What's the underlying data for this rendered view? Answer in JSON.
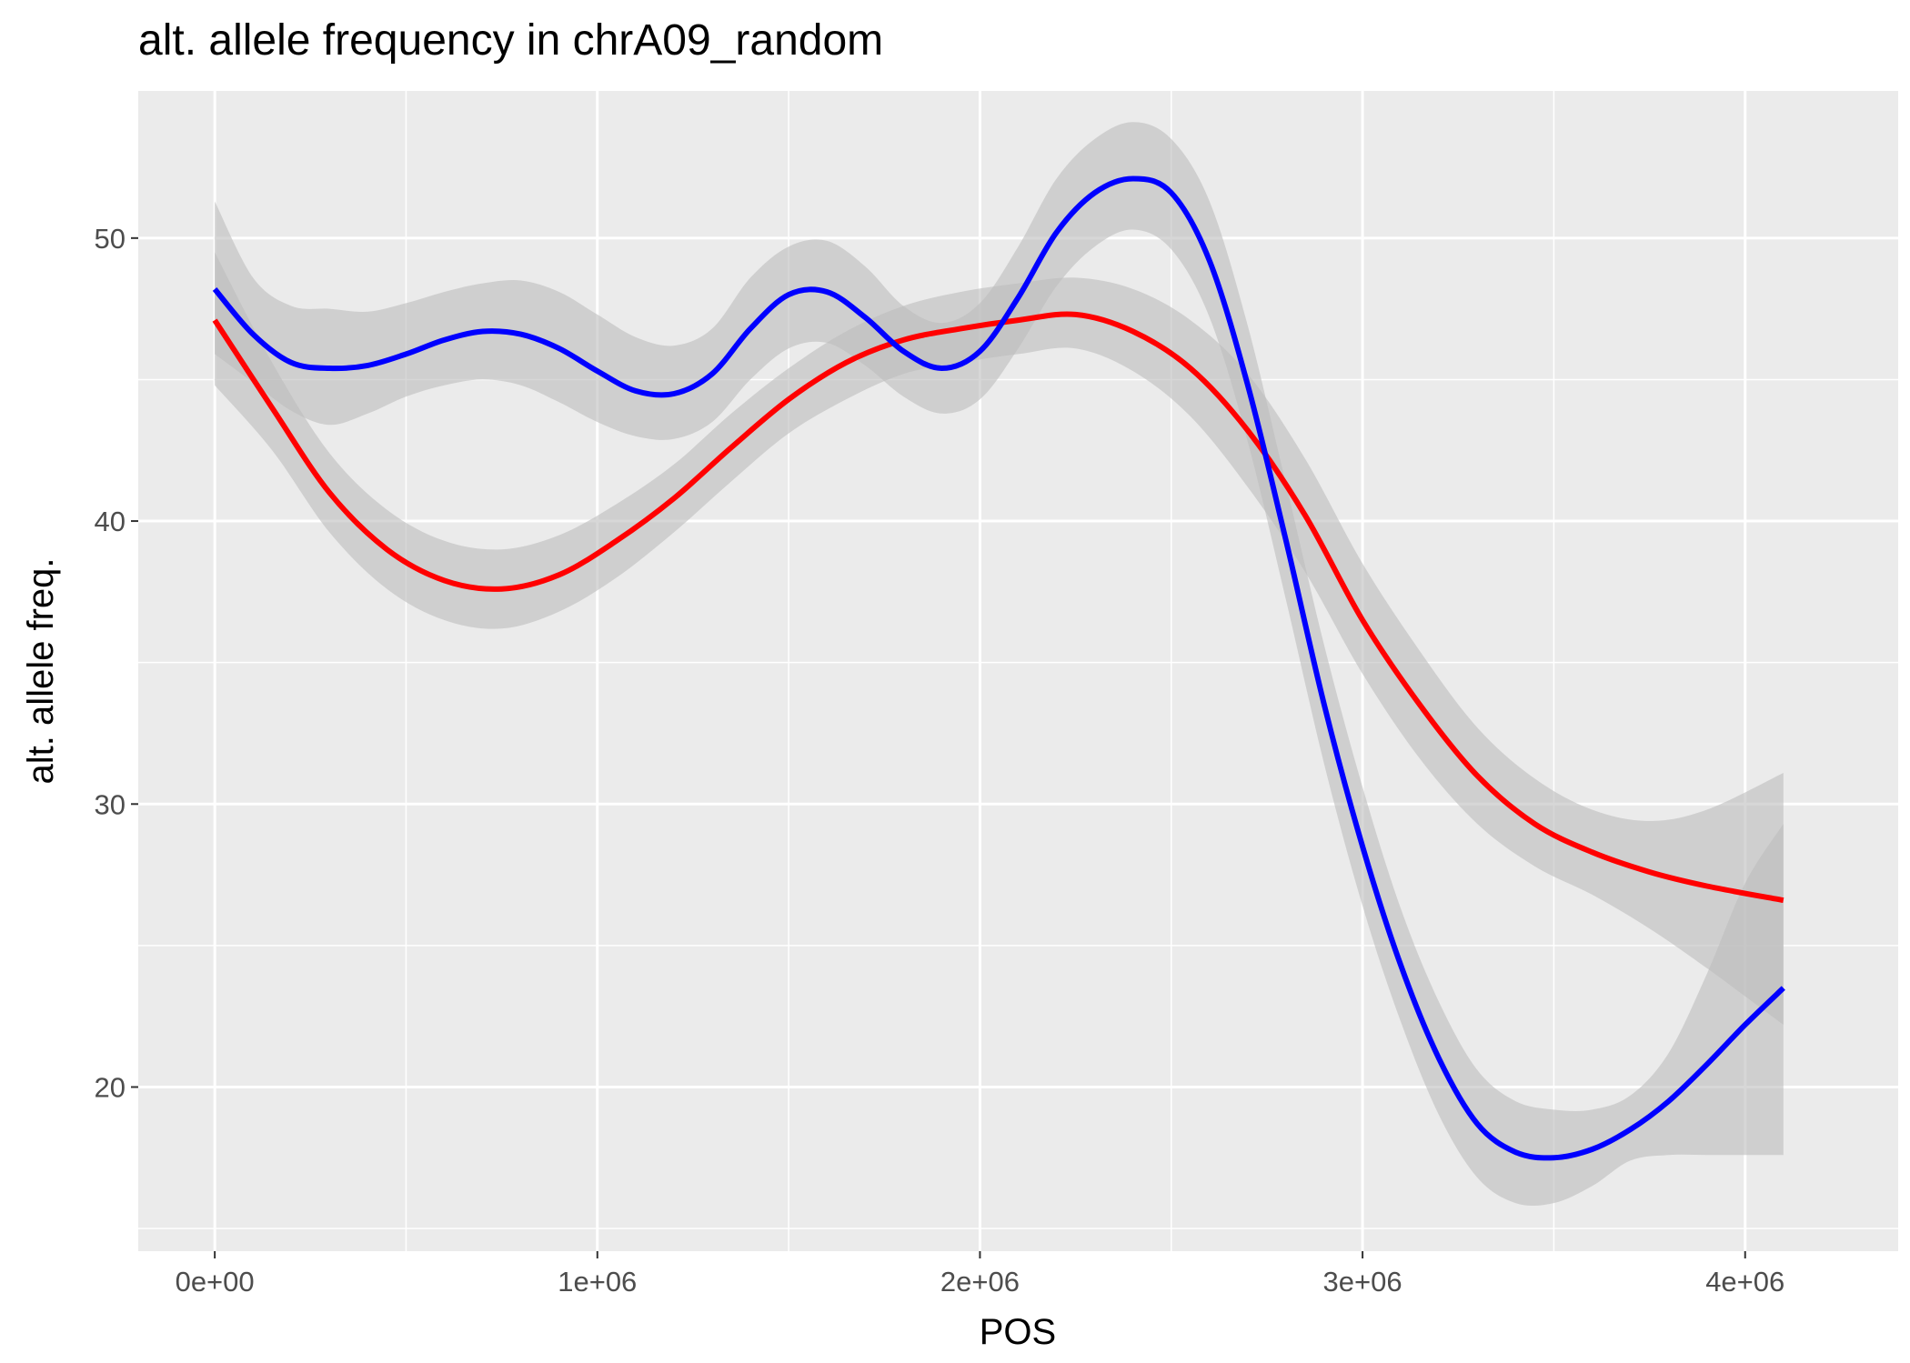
{
  "chart_data": {
    "type": "line",
    "title": "alt. allele frequency in chrA09_random",
    "xlabel": "POS",
    "ylabel": "alt. allele freq.",
    "xlim": [
      -200000,
      4400000
    ],
    "ylim": [
      14.2,
      55.2
    ],
    "x_ticks": [
      {
        "value": 0,
        "label": "0e+00"
      },
      {
        "value": 1000000,
        "label": "1e+06"
      },
      {
        "value": 2000000,
        "label": "2e+06"
      },
      {
        "value": 3000000,
        "label": "3e+06"
      },
      {
        "value": 4000000,
        "label": "4e+06"
      }
    ],
    "x_minor": [
      500000,
      1500000,
      2500000,
      3500000
    ],
    "y_ticks": [
      {
        "value": 20,
        "label": "20"
      },
      {
        "value": 30,
        "label": "30"
      },
      {
        "value": 40,
        "label": "40"
      },
      {
        "value": 50,
        "label": "50"
      }
    ],
    "y_minor": [
      15,
      25,
      35,
      45
    ],
    "grid": true,
    "legend": "none",
    "colors": {
      "panel": "#ebebeb",
      "grid": "#ffffff",
      "ribbon": "#bdbdbd"
    },
    "series": [
      {
        "color": "#ff0000",
        "x": [
          0,
          150000,
          300000,
          450000,
          600000,
          750000,
          900000,
          1050000,
          1200000,
          1350000,
          1500000,
          1650000,
          1800000,
          1950000,
          2100000,
          2250000,
          2400000,
          2550000,
          2700000,
          2850000,
          3000000,
          3150000,
          3300000,
          3450000,
          3600000,
          3750000,
          3900000,
          4100000
        ],
        "y": [
          47.1,
          44.0,
          41.0,
          39.0,
          37.9,
          37.6,
          38.1,
          39.3,
          40.8,
          42.6,
          44.3,
          45.6,
          46.4,
          46.8,
          47.1,
          47.3,
          46.7,
          45.4,
          43.2,
          40.2,
          36.5,
          33.5,
          31.0,
          29.3,
          28.3,
          27.6,
          27.1,
          26.6
        ],
        "lower": [
          44.8,
          42.5,
          39.6,
          37.6,
          36.5,
          36.2,
          36.8,
          38.0,
          39.6,
          41.4,
          43.1,
          44.3,
          45.2,
          45.6,
          45.9,
          46.1,
          45.3,
          43.7,
          41.2,
          38.2,
          34.6,
          31.6,
          29.3,
          27.8,
          26.8,
          25.6,
          24.2,
          22.2
        ],
        "upper": [
          49.5,
          45.6,
          42.4,
          40.4,
          39.3,
          39.0,
          39.5,
          40.6,
          42.0,
          43.8,
          45.4,
          46.7,
          47.6,
          48.1,
          48.4,
          48.6,
          48.2,
          47.1,
          45.2,
          42.2,
          38.5,
          35.4,
          32.7,
          30.9,
          29.8,
          29.4,
          29.8,
          31.1
        ]
      },
      {
        "color": "#0000ff",
        "x": [
          0,
          100000,
          200000,
          300000,
          400000,
          500000,
          600000,
          700000,
          800000,
          900000,
          1000000,
          1100000,
          1200000,
          1300000,
          1400000,
          1500000,
          1600000,
          1700000,
          1800000,
          1900000,
          2000000,
          2100000,
          2200000,
          2300000,
          2400000,
          2500000,
          2600000,
          2700000,
          2800000,
          2900000,
          3000000,
          3100000,
          3200000,
          3300000,
          3400000,
          3500000,
          3600000,
          3700000,
          3800000,
          3900000,
          4000000,
          4100000
        ],
        "y": [
          48.2,
          46.6,
          45.6,
          45.4,
          45.5,
          45.9,
          46.4,
          46.7,
          46.6,
          46.1,
          45.3,
          44.6,
          44.5,
          45.2,
          46.8,
          48.0,
          48.1,
          47.2,
          46.0,
          45.4,
          46.0,
          47.9,
          50.2,
          51.6,
          52.1,
          51.6,
          49.2,
          44.8,
          39.3,
          33.5,
          28.5,
          24.3,
          21.0,
          18.7,
          17.7,
          17.5,
          17.8,
          18.5,
          19.5,
          20.8,
          22.2,
          23.5
        ],
        "lower": [
          45.9,
          44.9,
          43.9,
          43.4,
          43.8,
          44.4,
          44.8,
          45.0,
          44.8,
          44.2,
          43.5,
          43.0,
          42.9,
          43.5,
          45.0,
          46.1,
          46.3,
          45.5,
          44.4,
          43.8,
          44.3,
          46.1,
          48.3,
          49.7,
          50.3,
          49.6,
          47.2,
          42.8,
          37.2,
          31.4,
          26.4,
          22.3,
          19.0,
          16.8,
          15.9,
          15.9,
          16.5,
          17.4,
          17.6,
          17.6,
          17.6,
          17.6
        ],
        "upper": [
          51.3,
          48.6,
          47.6,
          47.5,
          47.4,
          47.7,
          48.1,
          48.4,
          48.5,
          48.1,
          47.3,
          46.5,
          46.2,
          46.8,
          48.6,
          49.7,
          49.9,
          49.0,
          47.6,
          47.0,
          47.7,
          49.7,
          52.1,
          53.5,
          54.1,
          53.5,
          51.3,
          46.9,
          41.3,
          35.6,
          30.6,
          26.3,
          23.0,
          20.6,
          19.5,
          19.2,
          19.2,
          19.7,
          21.2,
          24.0,
          27.2,
          29.3
        ]
      }
    ]
  }
}
